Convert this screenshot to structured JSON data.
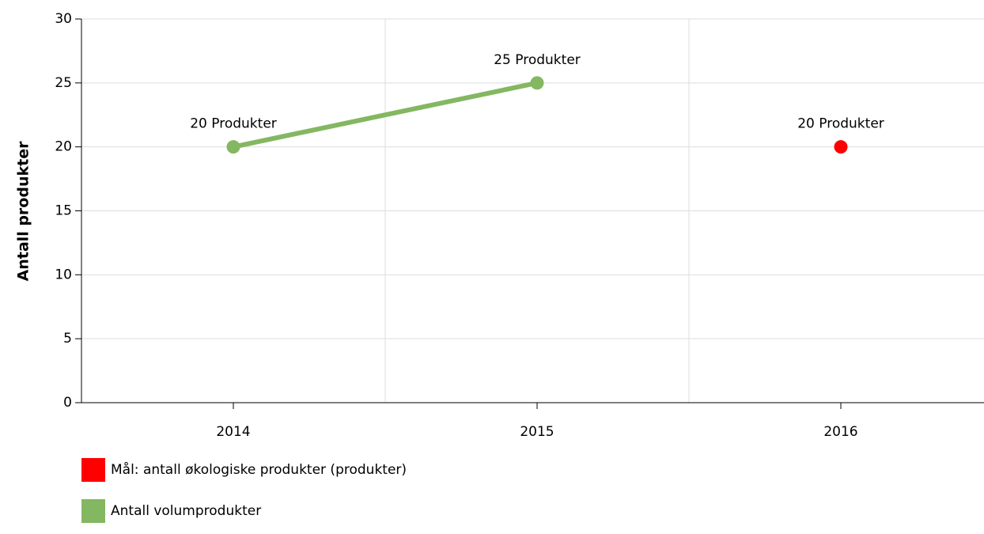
{
  "chart_data": {
    "type": "line",
    "y_label": "Antall produkter",
    "categories": [
      "2014",
      "2015",
      "2016"
    ],
    "series": [
      {
        "name": "Mål: antall økologiske produkter (produkter)",
        "color": "#ff0000",
        "values": [
          null,
          null,
          20
        ],
        "value_labels": [
          null,
          null,
          "20 Produkter"
        ]
      },
      {
        "name": "Antall volumprodukter",
        "color": "#84b761",
        "values": [
          20,
          25,
          null
        ],
        "value_labels": [
          "20 Produkter",
          "25 Produkter",
          null
        ]
      }
    ],
    "ylim": [
      0,
      30
    ],
    "yticks": [
      0,
      5,
      10,
      15,
      20,
      25,
      30
    ],
    "grid": true
  }
}
